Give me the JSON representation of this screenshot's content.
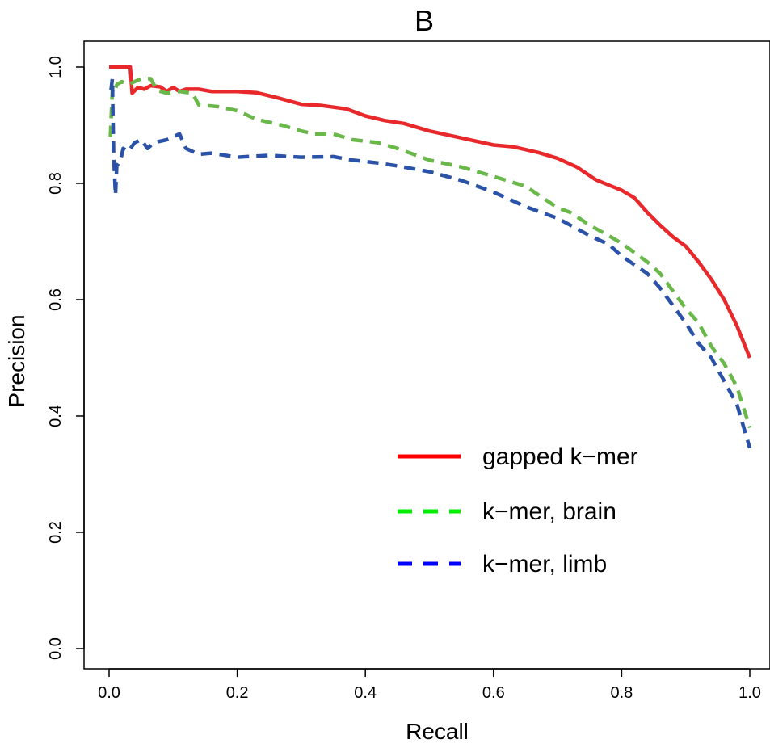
{
  "chart_data": {
    "type": "line",
    "title": "B",
    "xlabel": "Recall",
    "ylabel": "Precision",
    "xlim": [
      0.0,
      1.0
    ],
    "ylim": [
      0.0,
      1.0
    ],
    "xticks": [
      "0.0",
      "0.2",
      "0.4",
      "0.6",
      "0.8",
      "1.0"
    ],
    "yticks": [
      "0.0",
      "0.2",
      "0.4",
      "0.6",
      "0.8",
      "1.0"
    ],
    "grid": false,
    "legend_position": "bottom-right",
    "series": [
      {
        "name": "gapped k−mer",
        "color": "#e8282a",
        "line_style": "solid",
        "legend_color": "#ff0000",
        "points": [
          [
            0.0,
            1.0
          ],
          [
            0.01,
            1.0
          ],
          [
            0.02,
            1.0
          ],
          [
            0.033,
            1.0
          ],
          [
            0.036,
            0.955
          ],
          [
            0.045,
            0.965
          ],
          [
            0.055,
            0.962
          ],
          [
            0.065,
            0.968
          ],
          [
            0.08,
            0.966
          ],
          [
            0.09,
            0.958
          ],
          [
            0.1,
            0.965
          ],
          [
            0.11,
            0.958
          ],
          [
            0.12,
            0.962
          ],
          [
            0.14,
            0.962
          ],
          [
            0.16,
            0.958
          ],
          [
            0.2,
            0.958
          ],
          [
            0.23,
            0.956
          ],
          [
            0.26,
            0.948
          ],
          [
            0.3,
            0.936
          ],
          [
            0.33,
            0.934
          ],
          [
            0.37,
            0.928
          ],
          [
            0.4,
            0.916
          ],
          [
            0.43,
            0.908
          ],
          [
            0.46,
            0.903
          ],
          [
            0.5,
            0.89
          ],
          [
            0.55,
            0.878
          ],
          [
            0.6,
            0.866
          ],
          [
            0.63,
            0.863
          ],
          [
            0.67,
            0.853
          ],
          [
            0.7,
            0.843
          ],
          [
            0.73,
            0.828
          ],
          [
            0.76,
            0.806
          ],
          [
            0.8,
            0.788
          ],
          [
            0.82,
            0.775
          ],
          [
            0.84,
            0.75
          ],
          [
            0.86,
            0.728
          ],
          [
            0.88,
            0.708
          ],
          [
            0.9,
            0.692
          ],
          [
            0.92,
            0.665
          ],
          [
            0.94,
            0.635
          ],
          [
            0.96,
            0.6
          ],
          [
            0.98,
            0.555
          ],
          [
            1.0,
            0.5
          ]
        ]
      },
      {
        "name": "k−mer, brain",
        "color": "#6ab84a",
        "line_style": "dashed",
        "legend_color": "#00ee00",
        "points": [
          [
            0.002,
            0.88
          ],
          [
            0.005,
            0.96
          ],
          [
            0.008,
            0.955
          ],
          [
            0.012,
            0.97
          ],
          [
            0.02,
            0.975
          ],
          [
            0.03,
            0.97
          ],
          [
            0.04,
            0.975
          ],
          [
            0.05,
            0.98
          ],
          [
            0.065,
            0.98
          ],
          [
            0.075,
            0.96
          ],
          [
            0.09,
            0.955
          ],
          [
            0.11,
            0.958
          ],
          [
            0.13,
            0.955
          ],
          [
            0.14,
            0.935
          ],
          [
            0.17,
            0.932
          ],
          [
            0.2,
            0.925
          ],
          [
            0.23,
            0.91
          ],
          [
            0.27,
            0.9
          ],
          [
            0.3,
            0.89
          ],
          [
            0.32,
            0.885
          ],
          [
            0.35,
            0.885
          ],
          [
            0.38,
            0.875
          ],
          [
            0.42,
            0.87
          ],
          [
            0.45,
            0.86
          ],
          [
            0.5,
            0.84
          ],
          [
            0.55,
            0.828
          ],
          [
            0.6,
            0.812
          ],
          [
            0.65,
            0.795
          ],
          [
            0.7,
            0.758
          ],
          [
            0.72,
            0.75
          ],
          [
            0.75,
            0.728
          ],
          [
            0.78,
            0.71
          ],
          [
            0.8,
            0.697
          ],
          [
            0.84,
            0.665
          ],
          [
            0.86,
            0.645
          ],
          [
            0.88,
            0.615
          ],
          [
            0.9,
            0.585
          ],
          [
            0.92,
            0.56
          ],
          [
            0.94,
            0.52
          ],
          [
            0.96,
            0.49
          ],
          [
            0.98,
            0.45
          ],
          [
            1.0,
            0.38
          ]
        ]
      },
      {
        "name": "k−mer, limb",
        "color": "#2a52a6",
        "line_style": "dashed",
        "legend_color": "#0000ff",
        "points": [
          [
            0.003,
            0.96
          ],
          [
            0.005,
            0.98
          ],
          [
            0.007,
            0.85
          ],
          [
            0.01,
            0.78
          ],
          [
            0.012,
            0.83
          ],
          [
            0.018,
            0.84
          ],
          [
            0.022,
            0.86
          ],
          [
            0.03,
            0.855
          ],
          [
            0.04,
            0.87
          ],
          [
            0.05,
            0.875
          ],
          [
            0.06,
            0.86
          ],
          [
            0.07,
            0.87
          ],
          [
            0.09,
            0.875
          ],
          [
            0.11,
            0.885
          ],
          [
            0.12,
            0.86
          ],
          [
            0.14,
            0.85
          ],
          [
            0.16,
            0.852
          ],
          [
            0.2,
            0.845
          ],
          [
            0.25,
            0.848
          ],
          [
            0.3,
            0.845
          ],
          [
            0.35,
            0.846
          ],
          [
            0.38,
            0.84
          ],
          [
            0.42,
            0.835
          ],
          [
            0.45,
            0.83
          ],
          [
            0.5,
            0.82
          ],
          [
            0.55,
            0.805
          ],
          [
            0.6,
            0.785
          ],
          [
            0.65,
            0.76
          ],
          [
            0.7,
            0.74
          ],
          [
            0.75,
            0.71
          ],
          [
            0.78,
            0.695
          ],
          [
            0.8,
            0.675
          ],
          [
            0.84,
            0.645
          ],
          [
            0.86,
            0.62
          ],
          [
            0.88,
            0.59
          ],
          [
            0.9,
            0.56
          ],
          [
            0.92,
            0.525
          ],
          [
            0.94,
            0.5
          ],
          [
            0.96,
            0.46
          ],
          [
            0.98,
            0.42
          ],
          [
            1.0,
            0.345
          ]
        ]
      }
    ]
  }
}
